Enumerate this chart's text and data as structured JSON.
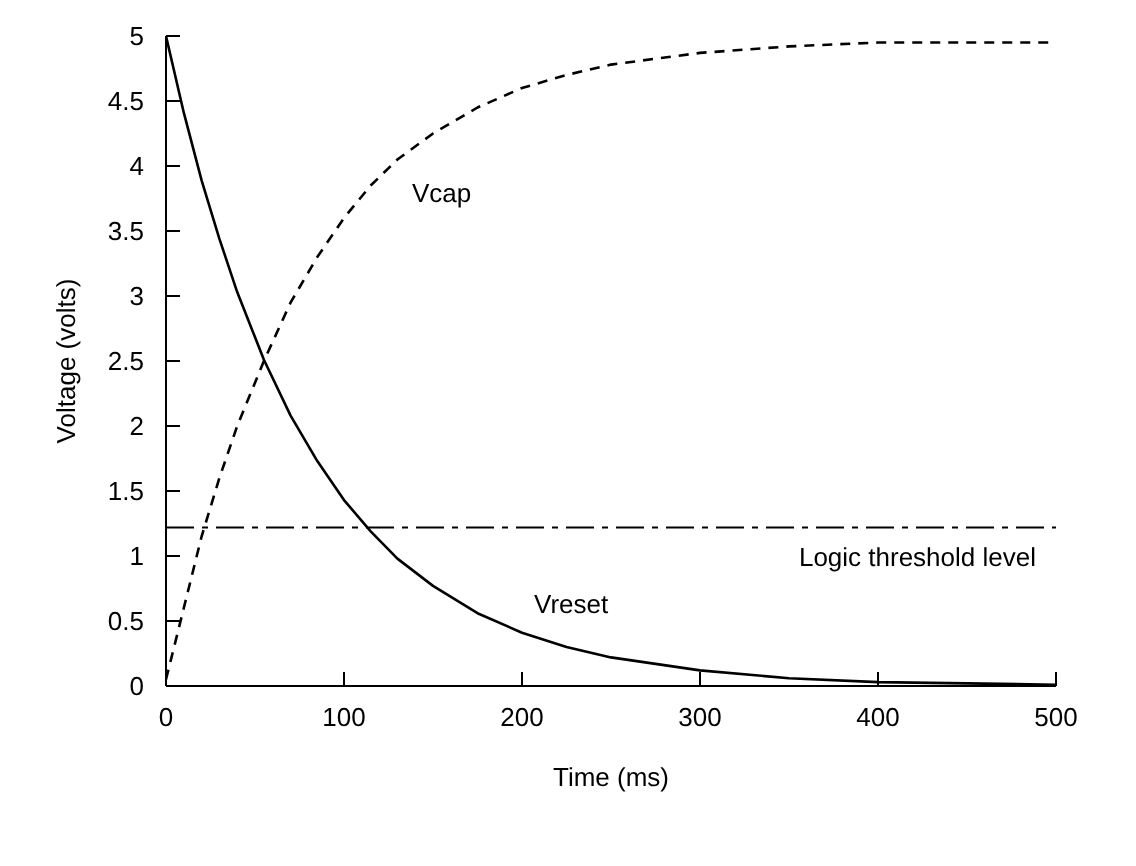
{
  "chart_data": {
    "type": "line",
    "xlabel": "Time (ms)",
    "ylabel": "Voltage (volts)",
    "x": [
      0,
      10,
      20,
      30,
      40,
      55,
      70,
      85,
      100,
      115,
      130,
      150,
      175,
      200,
      225,
      250,
      300,
      350,
      400,
      450,
      500
    ],
    "series": [
      {
        "name": "Vcap",
        "color": "#000000",
        "line_style": "dashed",
        "values": [
          0.05,
          0.6,
          1.15,
          1.6,
          2.0,
          2.5,
          2.95,
          3.3,
          3.6,
          3.85,
          4.05,
          4.25,
          4.45,
          4.6,
          4.7,
          4.78,
          4.87,
          4.92,
          4.95,
          4.95,
          4.95
        ]
      },
      {
        "name": "Vreset",
        "color": "#000000",
        "line_style": "solid",
        "values": [
          5,
          4.41,
          3.89,
          3.44,
          3.03,
          2.51,
          2.08,
          1.73,
          1.43,
          1.19,
          0.98,
          0.77,
          0.56,
          0.41,
          0.3,
          0.22,
          0.12,
          0.06,
          0.03,
          0.02,
          0.01
        ]
      }
    ],
    "ref_lines": [
      {
        "axis": "y",
        "value": 1.22,
        "label": "Logic threshold level",
        "color": "#000000",
        "line_style": "dashdot"
      }
    ],
    "xlim": [
      0,
      500
    ],
    "xticks": [
      0,
      100,
      200,
      300,
      400,
      500
    ],
    "ylim": [
      0,
      5
    ],
    "yticks": [
      0,
      0.5,
      1,
      1.5,
      2,
      2.5,
      3,
      3.5,
      4,
      4.5,
      5
    ],
    "grid": false,
    "legend": false,
    "marker": "none"
  }
}
